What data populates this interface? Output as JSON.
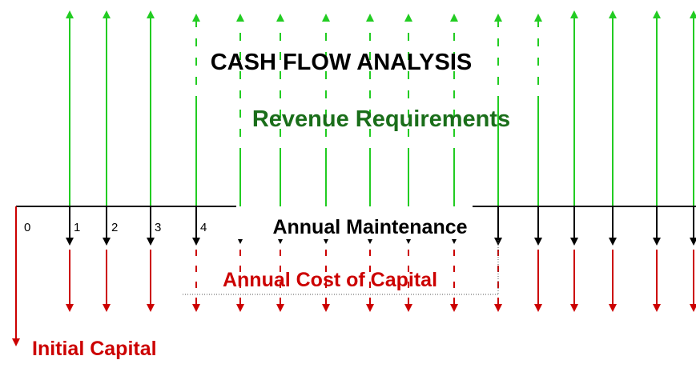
{
  "diagram": {
    "title": "CASH FLOW ANALYSIS",
    "revenue_label": "Revenue Requirements",
    "maintenance_label": "Annual Maintenance",
    "capital_cost_label": "Annual Cost of Capital",
    "initial_capital_label": "Initial Capital",
    "periods": [
      "0",
      "1",
      "2",
      "3",
      "4"
    ]
  }
}
